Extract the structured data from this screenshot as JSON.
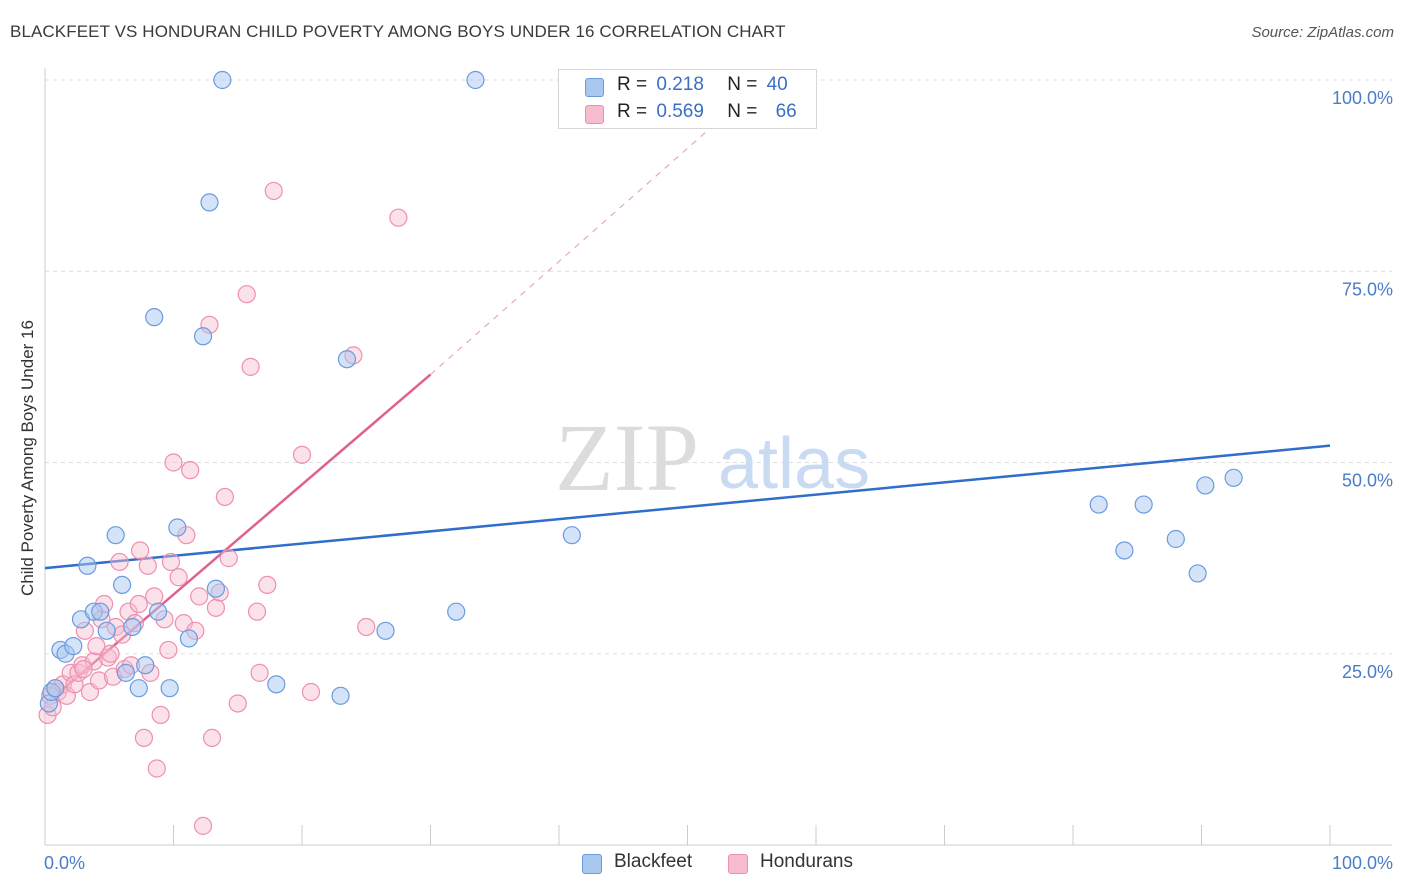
{
  "header": {
    "title": "BLACKFEET VS HONDURAN CHILD POVERTY AMONG BOYS UNDER 16 CORRELATION CHART",
    "source": "Source: ZipAtlas.com"
  },
  "watermark": {
    "zip": "ZIP",
    "atlas": "atlas"
  },
  "legend": {
    "rows": [
      {
        "r_label": "R =",
        "r_value": "0.218",
        "n_label": "N =",
        "n_value": "40"
      },
      {
        "r_label": "R =",
        "r_value": "0.569",
        "n_label": "N =",
        "n_value": "66"
      }
    ]
  },
  "colors": {
    "blackfeet_fill": "#a9c8ef",
    "blackfeet_stroke": "#6a9be0",
    "blackfeet_line": "#2f6ec9",
    "hondurans_fill": "#f7bcd0",
    "hondurans_stroke": "#ee8fb0",
    "hondurans_line": "#e0608e",
    "tick_text": "#4a7cc7"
  },
  "chart_data": {
    "type": "scatter",
    "title": "BLACKFEET VS HONDURAN CHILD POVERTY AMONG BOYS UNDER 16 CORRELATION CHART",
    "xlabel": "",
    "ylabel": "Child Poverty Among Boys Under 16",
    "xlim": [
      0,
      100
    ],
    "ylim": [
      0,
      100
    ],
    "x_tick_labels": [
      "0.0%",
      "100.0%"
    ],
    "y_tick_labels": [
      "25.0%",
      "50.0%",
      "75.0%",
      "100.0%"
    ],
    "y_ticks": [
      25,
      50,
      75,
      100
    ],
    "grid": true,
    "legend_position": "top-center",
    "series": [
      {
        "name": "Blackfeet",
        "r": 0.218,
        "n": 40,
        "trend": {
          "x": [
            0,
            100
          ],
          "y": [
            36.2,
            52.2
          ]
        },
        "points": [
          [
            0.3,
            18.5
          ],
          [
            0.5,
            20.0
          ],
          [
            0.8,
            20.5
          ],
          [
            1.2,
            25.5
          ],
          [
            1.6,
            25.0
          ],
          [
            2.2,
            26.0
          ],
          [
            2.8,
            29.5
          ],
          [
            3.3,
            36.5
          ],
          [
            3.8,
            30.5
          ],
          [
            4.3,
            30.5
          ],
          [
            4.8,
            28.0
          ],
          [
            5.5,
            40.5
          ],
          [
            6.0,
            34.0
          ],
          [
            6.3,
            22.5
          ],
          [
            6.8,
            28.5
          ],
          [
            7.3,
            20.5
          ],
          [
            7.8,
            23.5
          ],
          [
            8.5,
            69.0
          ],
          [
            8.8,
            30.5
          ],
          [
            9.7,
            20.5
          ],
          [
            10.3,
            41.5
          ],
          [
            11.2,
            27.0
          ],
          [
            12.3,
            66.5
          ],
          [
            12.8,
            84.0
          ],
          [
            13.3,
            33.5
          ],
          [
            13.8,
            100.0
          ],
          [
            18.0,
            21.0
          ],
          [
            23.0,
            19.5
          ],
          [
            23.5,
            63.5
          ],
          [
            26.5,
            28.0
          ],
          [
            32.0,
            30.5
          ],
          [
            33.5,
            100.0
          ],
          [
            41.0,
            40.5
          ],
          [
            82.0,
            44.5
          ],
          [
            84.0,
            38.5
          ],
          [
            85.5,
            44.5
          ],
          [
            88.0,
            40.0
          ],
          [
            89.7,
            35.5
          ],
          [
            90.3,
            47.0
          ],
          [
            92.5,
            48.0
          ]
        ]
      },
      {
        "name": "Hondurans",
        "r": 0.569,
        "n": 66,
        "trend": {
          "x": [
            1,
            30
          ],
          "y": [
            19.8,
            61.5
          ]
        },
        "trend_dashed": {
          "x": [
            30,
            53
          ],
          "y": [
            61.5,
            95.5
          ]
        },
        "points": [
          [
            0.2,
            17.0
          ],
          [
            0.4,
            19.5
          ],
          [
            0.6,
            18.0
          ],
          [
            0.8,
            20.5
          ],
          [
            1.0,
            20.0
          ],
          [
            1.4,
            21.0
          ],
          [
            1.7,
            19.5
          ],
          [
            2.0,
            22.5
          ],
          [
            2.3,
            21.0
          ],
          [
            2.6,
            22.5
          ],
          [
            2.9,
            23.5
          ],
          [
            3.1,
            28.0
          ],
          [
            3.5,
            20.0
          ],
          [
            3.8,
            24.0
          ],
          [
            4.0,
            26.0
          ],
          [
            4.2,
            21.5
          ],
          [
            4.4,
            29.5
          ],
          [
            4.6,
            31.5
          ],
          [
            4.9,
            24.5
          ],
          [
            5.1,
            25.0
          ],
          [
            5.3,
            22.0
          ],
          [
            5.5,
            28.5
          ],
          [
            5.8,
            37.0
          ],
          [
            6.0,
            27.5
          ],
          [
            6.2,
            23.0
          ],
          [
            6.5,
            30.5
          ],
          [
            6.7,
            23.5
          ],
          [
            7.0,
            29.0
          ],
          [
            7.3,
            31.5
          ],
          [
            7.4,
            38.5
          ],
          [
            7.7,
            14.0
          ],
          [
            8.0,
            36.5
          ],
          [
            8.2,
            22.5
          ],
          [
            8.5,
            32.5
          ],
          [
            8.7,
            10.0
          ],
          [
            9.0,
            17.0
          ],
          [
            9.3,
            29.5
          ],
          [
            9.6,
            25.5
          ],
          [
            9.8,
            37.0
          ],
          [
            10.0,
            50.0
          ],
          [
            10.4,
            35.0
          ],
          [
            10.8,
            29.0
          ],
          [
            11.0,
            40.5
          ],
          [
            11.3,
            49.0
          ],
          [
            11.7,
            28.0
          ],
          [
            12.0,
            32.5
          ],
          [
            12.3,
            2.5
          ],
          [
            12.8,
            68.0
          ],
          [
            13.0,
            14.0
          ],
          [
            13.3,
            31.0
          ],
          [
            13.6,
            33.0
          ],
          [
            14.0,
            45.5
          ],
          [
            14.3,
            37.5
          ],
          [
            15.0,
            18.5
          ],
          [
            15.7,
            72.0
          ],
          [
            16.0,
            62.5
          ],
          [
            16.5,
            30.5
          ],
          [
            16.7,
            22.5
          ],
          [
            17.3,
            34.0
          ],
          [
            17.8,
            85.5
          ],
          [
            20.0,
            51.0
          ],
          [
            20.7,
            20.0
          ],
          [
            24.0,
            64.0
          ],
          [
            25.0,
            28.5
          ],
          [
            27.5,
            82.0
          ],
          [
            3.0,
            23.0
          ]
        ]
      }
    ]
  },
  "bottom_legend": {
    "blackfeet": "Blackfeet",
    "hondurans": "Hondurans"
  }
}
